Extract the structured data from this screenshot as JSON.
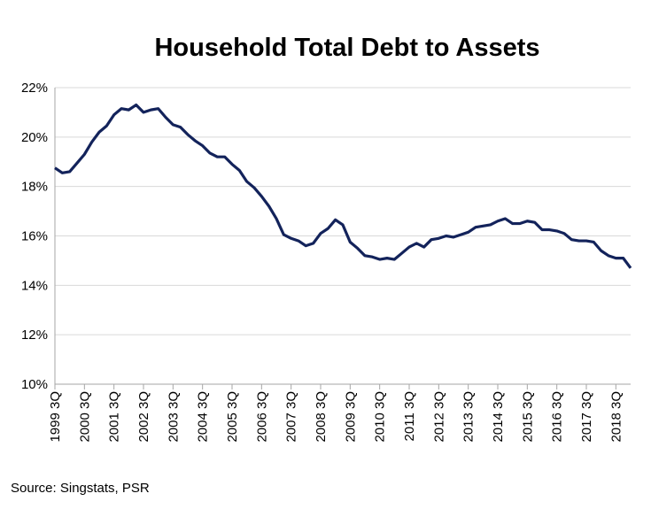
{
  "chart_data": {
    "type": "line",
    "title": "Household Total Debt to Assets",
    "source": "Source: Singstats, PSR",
    "color": "#13235b",
    "grid": true,
    "ylim": [
      10,
      22
    ],
    "yticks": [
      {
        "value": 10,
        "label": "10%"
      },
      {
        "value": 12,
        "label": "12%"
      },
      {
        "value": 14,
        "label": "14%"
      },
      {
        "value": 16,
        "label": "16%"
      },
      {
        "value": 18,
        "label": "18%"
      },
      {
        "value": 20,
        "label": "20%"
      },
      {
        "value": 22,
        "label": "22%"
      }
    ],
    "categories": [
      "1999 3Q",
      null,
      null,
      null,
      "2000 3Q",
      null,
      null,
      null,
      "2001 3Q",
      null,
      null,
      null,
      "2002 3Q",
      null,
      null,
      null,
      "2003 3Q",
      null,
      null,
      null,
      "2004 3Q",
      null,
      null,
      null,
      "2005 3Q",
      null,
      null,
      null,
      "2006 3Q",
      null,
      null,
      null,
      "2007 3Q",
      null,
      null,
      null,
      "2008 3Q",
      null,
      null,
      null,
      "2009 3Q",
      null,
      null,
      null,
      "2010 3Q",
      null,
      null,
      null,
      "2011 3Q",
      null,
      null,
      null,
      "2012 3Q",
      null,
      null,
      null,
      "2013 3Q",
      null,
      null,
      null,
      "2014 3Q",
      null,
      null,
      null,
      "2015 3Q",
      null,
      null,
      null,
      "2016 3Q",
      null,
      null,
      null,
      "2017 3Q",
      null,
      null,
      null,
      "2018 3Q",
      null,
      null
    ],
    "values": [
      18.75,
      18.55,
      18.6,
      18.95,
      19.3,
      19.8,
      20.2,
      20.45,
      20.9,
      21.15,
      21.1,
      21.3,
      21.0,
      21.1,
      21.15,
      20.8,
      20.5,
      20.4,
      20.1,
      19.85,
      19.65,
      19.35,
      19.2,
      19.2,
      18.9,
      18.65,
      18.2,
      17.95,
      17.6,
      17.2,
      16.7,
      16.05,
      15.9,
      15.8,
      15.6,
      15.7,
      16.1,
      16.3,
      16.65,
      16.45,
      15.75,
      15.5,
      15.2,
      15.15,
      15.05,
      15.1,
      15.05,
      15.3,
      15.55,
      15.7,
      15.55,
      15.85,
      15.9,
      16.0,
      15.95,
      16.05,
      16.15,
      16.35,
      16.4,
      16.45,
      16.6,
      16.7,
      16.5,
      16.5,
      16.6,
      16.55,
      16.25,
      16.25,
      16.2,
      16.1,
      15.85,
      15.8,
      15.8,
      15.75,
      15.4,
      15.2,
      15.1,
      15.1,
      14.7
    ]
  }
}
